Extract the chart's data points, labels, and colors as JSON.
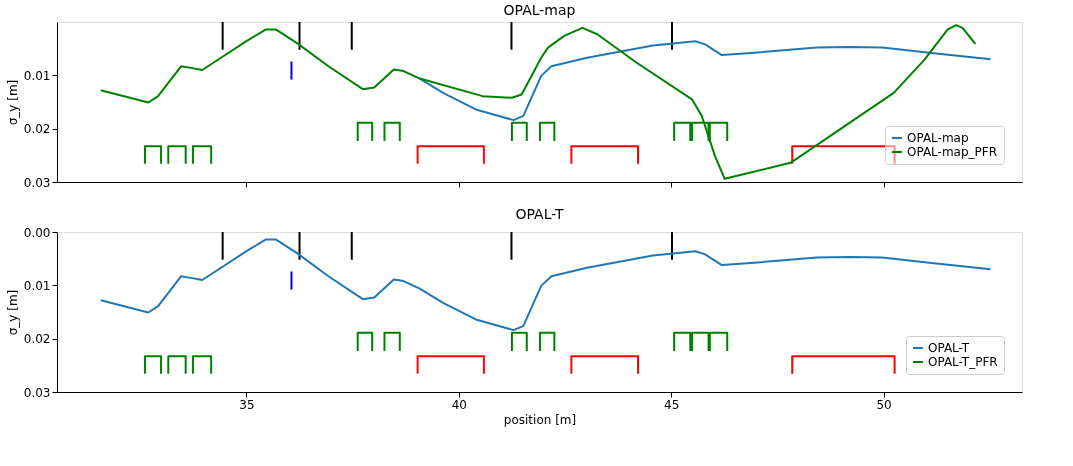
{
  "chart_data": [
    {
      "type": "line",
      "title": "OPAL-map",
      "ylabel": "σ_y [m]",
      "xlim": [
        30.54,
        53.26
      ],
      "xticks": [
        35,
        40,
        45,
        50
      ],
      "ylim": [
        0.03,
        0
      ],
      "yticks": [
        0.01,
        0.02,
        0.03
      ],
      "tick_labels": "y",
      "grid": false,
      "legend": "bottom right",
      "series": [
        {
          "name": "OPAL-map",
          "color": "#1f77b4",
          "x": [
            39.08,
            39.63,
            40.4,
            41.29,
            41.52,
            41.94,
            42.18,
            43.02,
            44.57,
            45.57,
            45.8,
            46.19,
            46.88,
            48.43,
            49.2,
            49.97,
            51.13,
            52.52
          ],
          "values": [
            0.0106,
            0.0133,
            0.0164,
            0.0184,
            0.0176,
            0.0101,
            0.0083,
            0.0067,
            0.0044,
            0.0036,
            0.0042,
            0.0062,
            0.0058,
            0.0048,
            0.0047,
            0.0048,
            0.0058,
            0.007
          ]
        },
        {
          "name": "OPAL-map_PFR",
          "color": "#008000",
          "x": [
            31.57,
            32.69,
            32.92,
            33.46,
            33.69,
            33.96,
            34.23,
            35.0,
            35.46,
            35.69,
            36.2,
            36.93,
            37.74,
            38.01,
            38.47,
            38.7,
            39.08,
            40.56,
            41.25,
            41.48,
            41.94,
            42.1,
            42.48,
            42.91,
            43.26,
            44.18,
            45.49,
            45.72,
            46.03,
            46.26,
            47.81,
            50.24,
            50.97,
            51.51,
            51.71,
            51.86,
            52.16
          ],
          "values": [
            0.0128,
            0.0151,
            0.0139,
            0.0083,
            0.0086,
            0.009,
            0.0076,
            0.0036,
            0.0014,
            0.0014,
            0.004,
            0.0083,
            0.0126,
            0.0123,
            0.0089,
            0.0092,
            0.0106,
            0.0139,
            0.0142,
            0.0136,
            0.0067,
            0.0048,
            0.0026,
            0.0011,
            0.0023,
            0.0076,
            0.0145,
            0.0176,
            0.0251,
            0.0294,
            0.0264,
            0.0133,
            0.007,
            0.0014,
            0.0006,
            0.0011,
            0.0041
          ]
        },
        {
          "color": "#000000",
          "x": [
            34.44,
            34.44,
            null,
            36.25,
            36.25,
            null,
            37.48,
            37.48,
            null,
            41.24,
            41.24,
            null,
            45.02,
            45.02
          ],
          "values": [
            0,
            0.0052,
            null,
            0,
            0.0052,
            null,
            0,
            0.0052,
            null,
            0,
            0.0052,
            null,
            0,
            0.0052
          ]
        },
        {
          "color": "#0000ff",
          "x": [
            36.06,
            36.06
          ],
          "values": [
            0.0074,
            0.0108
          ]
        },
        {
          "color": "#008000",
          "x": [
            32.61,
            32.61,
            32.99,
            32.99,
            null,
            33.16,
            33.16,
            33.57,
            33.57,
            null,
            33.74,
            33.74,
            34.17,
            34.17,
            null,
            37.62,
            37.62,
            37.96,
            37.96,
            null,
            38.25,
            38.25,
            38.61,
            38.61,
            null,
            41.25,
            41.25,
            41.6,
            41.6,
            null,
            41.91,
            41.91,
            42.25,
            42.25,
            null,
            45.07,
            45.07,
            45.45,
            45.45,
            null,
            45.49,
            45.49,
            45.88,
            45.88,
            null,
            45.91,
            45.91,
            46.32,
            46.32
          ],
          "values": [
            0.0266,
            0.0233,
            0.0233,
            0.0266,
            null,
            0.0266,
            0.0233,
            0.0233,
            0.0266,
            null,
            0.0266,
            0.0233,
            0.0233,
            0.0266,
            null,
            0.0223,
            0.0189,
            0.0189,
            0.0223,
            null,
            0.0223,
            0.0189,
            0.0189,
            0.0223,
            null,
            0.0223,
            0.0189,
            0.0189,
            0.0223,
            null,
            0.0223,
            0.0189,
            0.0189,
            0.0223,
            null,
            0.0223,
            0.0189,
            0.0189,
            0.0223,
            null,
            0.0223,
            0.0189,
            0.0189,
            0.0223,
            null,
            0.0223,
            0.0189,
            0.0189,
            0.0223
          ]
        },
        {
          "color": "#ff0000",
          "x": [
            39.03,
            39.03,
            40.59,
            40.59,
            null,
            42.65,
            42.65,
            44.22,
            44.22,
            null,
            47.85,
            47.85,
            50.26,
            50.26
          ],
          "values": [
            0.0266,
            0.0233,
            0.0233,
            0.0266,
            null,
            0.0266,
            0.0233,
            0.0233,
            0.0266,
            null,
            0.0266,
            0.0233,
            0.0233,
            0.0266
          ]
        }
      ]
    },
    {
      "type": "line",
      "title": "OPAL-T",
      "xlabel": "position [m]",
      "ylabel": "σ_y [m]",
      "xlim": [
        30.54,
        53.26
      ],
      "xticks": [
        35,
        40,
        45,
        50
      ],
      "ylim": [
        0.03,
        0
      ],
      "yticks": [
        {
          "value": 0,
          "label": "0.00"
        },
        0.01,
        0.02,
        0.03
      ],
      "grid": false,
      "legend": "bottom right",
      "series": [
        {
          "name": "OPAL-T",
          "color": "#1f77b4",
          "x": [
            31.57,
            32.69,
            32.92,
            33.46,
            33.69,
            33.96,
            34.23,
            35.0,
            35.46,
            35.69,
            36.2,
            36.93,
            37.74,
            38.01,
            38.47,
            38.7,
            39.08,
            39.63,
            40.4,
            41.29,
            41.52,
            41.94,
            42.18,
            43.02,
            44.57,
            45.57,
            45.8,
            46.19,
            46.88,
            48.43,
            49.2,
            49.97,
            51.13,
            52.52
          ],
          "values": [
            0.0128,
            0.0151,
            0.0139,
            0.0083,
            0.0086,
            0.009,
            0.0076,
            0.0036,
            0.0014,
            0.0014,
            0.004,
            0.0083,
            0.0126,
            0.0123,
            0.0089,
            0.0092,
            0.0106,
            0.0133,
            0.0164,
            0.0184,
            0.0176,
            0.0101,
            0.0083,
            0.0067,
            0.0044,
            0.0036,
            0.0042,
            0.0062,
            0.0058,
            0.0048,
            0.0047,
            0.0048,
            0.0058,
            0.007
          ]
        },
        {
          "name": "OPAL-T_PFR",
          "color": "#008000"
        },
        {
          "color": "#000000",
          "x": [
            34.44,
            34.44,
            null,
            36.25,
            36.25,
            null,
            37.48,
            37.48,
            null,
            41.24,
            41.24,
            null,
            45.02,
            45.02
          ],
          "values": [
            0,
            0.0052,
            null,
            0,
            0.0052,
            null,
            0,
            0.0052,
            null,
            0,
            0.0052,
            null,
            0,
            0.0052
          ]
        },
        {
          "color": "#0000ff",
          "x": [
            36.06,
            36.06
          ],
          "values": [
            0.0074,
            0.0108
          ]
        },
        {
          "color": "#008000",
          "x": [
            32.61,
            32.61,
            32.99,
            32.99,
            null,
            33.16,
            33.16,
            33.57,
            33.57,
            null,
            33.74,
            33.74,
            34.17,
            34.17,
            null,
            37.62,
            37.62,
            37.96,
            37.96,
            null,
            38.25,
            38.25,
            38.61,
            38.61,
            null,
            41.25,
            41.25,
            41.6,
            41.6,
            null,
            41.91,
            41.91,
            42.25,
            42.25,
            null,
            45.07,
            45.07,
            45.45,
            45.45,
            null,
            45.49,
            45.49,
            45.88,
            45.88,
            null,
            45.91,
            45.91,
            46.32,
            46.32
          ],
          "values": [
            0.0266,
            0.0233,
            0.0233,
            0.0266,
            null,
            0.0266,
            0.0233,
            0.0233,
            0.0266,
            null,
            0.0266,
            0.0233,
            0.0233,
            0.0266,
            null,
            0.0223,
            0.0189,
            0.0189,
            0.0223,
            null,
            0.0223,
            0.0189,
            0.0189,
            0.0223,
            null,
            0.0223,
            0.0189,
            0.0189,
            0.0223,
            null,
            0.0223,
            0.0189,
            0.0189,
            0.0223,
            null,
            0.0223,
            0.0189,
            0.0189,
            0.0223,
            null,
            0.0223,
            0.0189,
            0.0189,
            0.0223,
            null,
            0.0223,
            0.0189,
            0.0189,
            0.0223
          ]
        },
        {
          "color": "#ff0000",
          "x": [
            39.03,
            39.03,
            40.59,
            40.59,
            null,
            42.65,
            42.65,
            44.22,
            44.22,
            null,
            47.85,
            47.85,
            50.26,
            50.26
          ],
          "values": [
            0.0266,
            0.0233,
            0.0233,
            0.0266,
            null,
            0.0266,
            0.0233,
            0.0233,
            0.0266,
            null,
            0.0266,
            0.0233,
            0.0233,
            0.0266
          ]
        }
      ]
    }
  ]
}
